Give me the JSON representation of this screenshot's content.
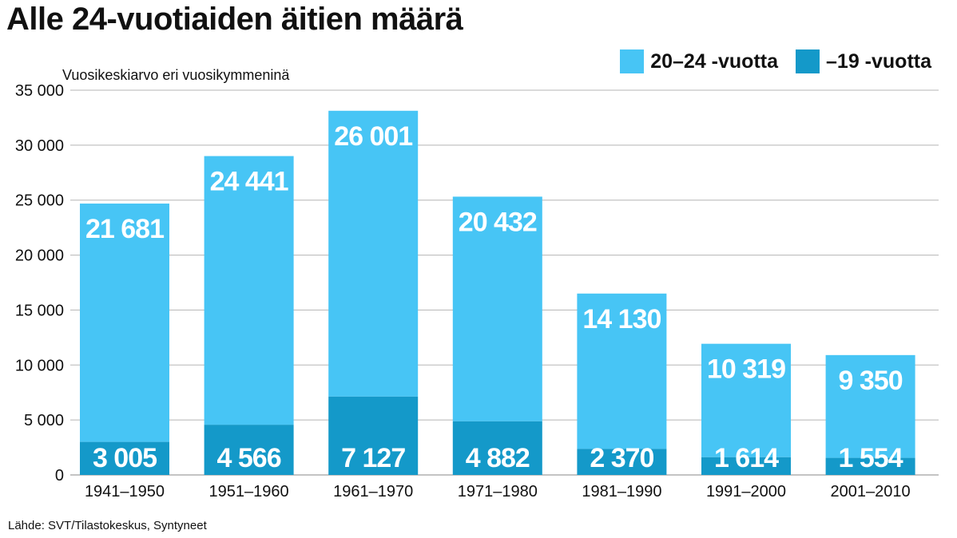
{
  "chart_data": {
    "type": "bar",
    "stacked": true,
    "title": "Alle 24-vuotiaiden äitien määrä",
    "subtitle": "Vuosikeskiarvo eri vuosikymmeninä",
    "source": "Lähde: SVT/Tilastokeskus, Syntyneet",
    "categories": [
      "1941–1950",
      "1951–1960",
      "1961–1970",
      "1971–1980",
      "1981–1990",
      "1991–2000",
      "2001–2010"
    ],
    "series": [
      {
        "name": "–19 -vuotta",
        "color": "#1499c9",
        "values": [
          3005,
          4566,
          7127,
          4882,
          2370,
          1614,
          1554
        ],
        "labels": [
          "3 005",
          "4 566",
          "7 127",
          "4 882",
          "2 370",
          "1 614",
          "1 554"
        ]
      },
      {
        "name": "20–24 -vuotta",
        "color": "#47c5f5",
        "values": [
          21681,
          24441,
          26001,
          20432,
          14130,
          10319,
          9350
        ],
        "labels": [
          "21 681",
          "24 441",
          "26 001",
          "20 432",
          "14 130",
          "10 319",
          "9 350"
        ]
      }
    ],
    "yticks": [
      0,
      5000,
      10000,
      15000,
      20000,
      25000,
      30000,
      35000
    ],
    "ytick_labels": [
      "0",
      "5 000",
      "10 000",
      "15 000",
      "20 000",
      "25 000",
      "30 000",
      "35 000"
    ],
    "ylim": [
      0,
      35000
    ],
    "grid": true,
    "legend_position": "top-right"
  }
}
